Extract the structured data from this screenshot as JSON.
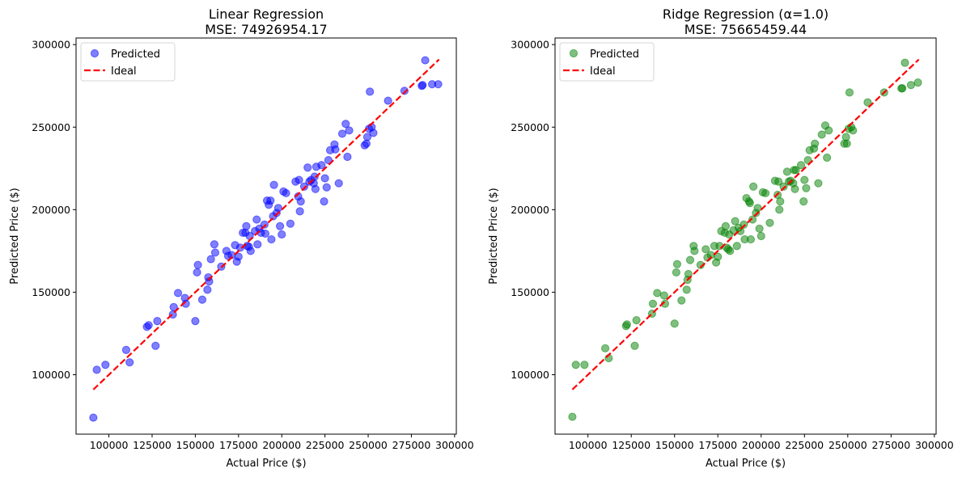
{
  "chart_data": [
    {
      "type": "scatter",
      "title_line1": "Linear Regression",
      "title_line2": "MSE: 74926954.17",
      "xlabel": "Actual Price ($)",
      "ylabel": "Predicted Price ($)",
      "xlim": [
        81000,
        301000
      ],
      "ylim": [
        64000,
        304000
      ],
      "xticks": [
        100000,
        125000,
        150000,
        175000,
        200000,
        225000,
        250000,
        275000,
        300000
      ],
      "yticks": [
        100000,
        150000,
        200000,
        250000,
        300000
      ],
      "xtick_labels": [
        "100000",
        "125000",
        "150000",
        "175000",
        "200000",
        "225000",
        "250000",
        "275000",
        "300000"
      ],
      "ytick_labels": [
        "100000",
        "150000",
        "200000",
        "250000",
        "300000"
      ],
      "legend": {
        "position": "upper-left",
        "entries": [
          "Predicted",
          "Ideal"
        ]
      },
      "grid": false,
      "point_color": "#0000ff",
      "ideal_color": "#ff0000",
      "ideal_line": {
        "x": [
          91000,
          291000
        ],
        "y": [
          91000,
          291000
        ]
      },
      "series": [
        {
          "name": "Predicted",
          "points": [
            [
              91000,
              74000
            ],
            [
              93000,
              103000
            ],
            [
              98000,
              106000
            ],
            [
              110000,
              115000
            ],
            [
              112000,
              107500
            ],
            [
              122000,
              129000
            ],
            [
              123000,
              130000
            ],
            [
              127000,
              117500
            ],
            [
              128000,
              132500
            ],
            [
              137000,
              136500
            ],
            [
              137500,
              141000
            ],
            [
              140000,
              149500
            ],
            [
              144000,
              146500
            ],
            [
              144500,
              143000
            ],
            [
              150000,
              132500
            ],
            [
              151000,
              162000
            ],
            [
              151500,
              166500
            ],
            [
              154000,
              145500
            ],
            [
              157000,
              151500
            ],
            [
              157500,
              159000
            ],
            [
              158000,
              156500
            ],
            [
              159000,
              170000
            ],
            [
              161000,
              179000
            ],
            [
              161500,
              174000
            ],
            [
              165000,
              165500
            ],
            [
              168000,
              175000
            ],
            [
              169000,
              172000
            ],
            [
              171000,
              172500
            ],
            [
              173000,
              178500
            ],
            [
              174000,
              168500
            ],
            [
              175000,
              171500
            ],
            [
              176000,
              177000
            ],
            [
              177500,
              186000
            ],
            [
              179000,
              186000
            ],
            [
              179500,
              190000
            ],
            [
              180000,
              178000
            ],
            [
              181000,
              177500
            ],
            [
              181500,
              184000
            ],
            [
              182000,
              175000
            ],
            [
              184500,
              187000
            ],
            [
              185500,
              194000
            ],
            [
              186000,
              179000
            ],
            [
              187000,
              188500
            ],
            [
              188000,
              186000
            ],
            [
              190000,
              191000
            ],
            [
              190500,
              185500
            ],
            [
              191500,
              205500
            ],
            [
              192500,
              203000
            ],
            [
              193500,
              205500
            ],
            [
              194000,
              182000
            ],
            [
              195000,
              196000
            ],
            [
              195500,
              215000
            ],
            [
              197000,
              198000
            ],
            [
              198000,
              201000
            ],
            [
              199000,
              190000
            ],
            [
              200000,
              185000
            ],
            [
              201000,
              211000
            ],
            [
              202500,
              210000
            ],
            [
              205000,
              191500
            ],
            [
              208000,
              217000
            ],
            [
              209500,
              208000
            ],
            [
              210000,
              218000
            ],
            [
              210500,
              199000
            ],
            [
              211000,
              205000
            ],
            [
              213000,
              214000
            ],
            [
              215000,
              225500
            ],
            [
              216000,
              217000
            ],
            [
              217000,
              218000
            ],
            [
              218500,
              216000
            ],
            [
              219500,
              212500
            ],
            [
              219000,
              220000
            ],
            [
              220000,
              226000
            ],
            [
              223000,
              227000
            ],
            [
              224500,
              205000
            ],
            [
              225000,
              219000
            ],
            [
              226000,
              213500
            ],
            [
              227000,
              230000
            ],
            [
              228000,
              236000
            ],
            [
              230500,
              239500
            ],
            [
              231000,
              236500
            ],
            [
              233000,
              216000
            ],
            [
              235000,
              246000
            ],
            [
              237000,
              252000
            ],
            [
              238000,
              232000
            ],
            [
              239000,
              248000
            ],
            [
              248000,
              239000
            ],
            [
              249000,
              240000
            ],
            [
              249500,
              244000
            ],
            [
              250500,
              249000
            ],
            [
              251000,
              271500
            ],
            [
              252000,
              250000
            ],
            [
              253000,
              246500
            ],
            [
              261500,
              266000
            ],
            [
              271000,
              272000
            ],
            [
              281000,
              275000
            ],
            [
              281500,
              275500
            ],
            [
              283000,
              290500
            ],
            [
              287000,
              276000
            ],
            [
              290500,
              276000
            ]
          ]
        },
        {
          "name": "Ideal",
          "style": "dashed"
        }
      ]
    },
    {
      "type": "scatter",
      "title_line1": "Ridge Regression (α=1.0)",
      "title_line2": "MSE: 75665459.44",
      "xlabel": "Actual Price ($)",
      "ylabel": "Predicted Price ($)",
      "xlim": [
        81000,
        301000
      ],
      "ylim": [
        64000,
        304000
      ],
      "xticks": [
        100000,
        125000,
        150000,
        175000,
        200000,
        225000,
        250000,
        275000,
        300000
      ],
      "yticks": [
        100000,
        150000,
        200000,
        250000,
        300000
      ],
      "xtick_labels": [
        "100000",
        "125000",
        "150000",
        "175000",
        "200000",
        "225000",
        "250000",
        "275000",
        "300000"
      ],
      "ytick_labels": [
        "100000",
        "150000",
        "200000",
        "250000",
        "300000"
      ],
      "legend": {
        "position": "upper-left",
        "entries": [
          "Predicted",
          "Ideal"
        ]
      },
      "grid": false,
      "point_color": "#008000",
      "ideal_color": "#ff0000",
      "ideal_line": {
        "x": [
          91000,
          291000
        ],
        "y": [
          91000,
          291000
        ]
      },
      "series": [
        {
          "name": "Predicted",
          "points": [
            [
              91000,
              74500
            ],
            [
              93000,
              106000
            ],
            [
              98000,
              106000
            ],
            [
              110000,
              116000
            ],
            [
              112000,
              110000
            ],
            [
              122000,
              129500
            ],
            [
              122500,
              130500
            ],
            [
              127000,
              117500
            ],
            [
              128000,
              133000
            ],
            [
              137000,
              137000
            ],
            [
              137500,
              143000
            ],
            [
              140000,
              149500
            ],
            [
              144000,
              148000
            ],
            [
              144500,
              143000
            ],
            [
              150000,
              131000
            ],
            [
              151000,
              162000
            ],
            [
              151500,
              167000
            ],
            [
              154000,
              145000
            ],
            [
              157000,
              151500
            ],
            [
              157500,
              157500
            ],
            [
              158000,
              161000
            ],
            [
              159000,
              169500
            ],
            [
              161000,
              178000
            ],
            [
              161500,
              175000
            ],
            [
              165000,
              166500
            ],
            [
              168000,
              176000
            ],
            [
              169000,
              171000
            ],
            [
              171000,
              172500
            ],
            [
              173000,
              178000
            ],
            [
              174000,
              168000
            ],
            [
              175000,
              171500
            ],
            [
              176000,
              178000
            ],
            [
              177000,
              187000
            ],
            [
              179000,
              186000
            ],
            [
              179500,
              190000
            ],
            [
              180000,
              177000
            ],
            [
              181000,
              176000
            ],
            [
              181500,
              185000
            ],
            [
              182000,
              175000
            ],
            [
              184000,
              187500
            ],
            [
              185000,
              193000
            ],
            [
              186000,
              178000
            ],
            [
              187000,
              189000
            ],
            [
              188000,
              187000
            ],
            [
              190000,
              191000
            ],
            [
              190500,
              182000
            ],
            [
              191500,
              207000
            ],
            [
              193000,
              205000
            ],
            [
              193500,
              204000
            ],
            [
              194000,
              182000
            ],
            [
              195000,
              194000
            ],
            [
              195500,
              214000
            ],
            [
              197000,
              198000
            ],
            [
              198000,
              201000
            ],
            [
              199000,
              188500
            ],
            [
              200000,
              184000
            ],
            [
              201000,
              210500
            ],
            [
              202500,
              210000
            ],
            [
              205000,
              192000
            ],
            [
              208000,
              217500
            ],
            [
              209500,
              209000
            ],
            [
              210000,
              217000
            ],
            [
              210500,
              200000
            ],
            [
              211000,
              205000
            ],
            [
              213000,
              214000
            ],
            [
              215000,
              223000
            ],
            [
              216000,
              217000
            ],
            [
              217000,
              217500
            ],
            [
              218500,
              216000
            ],
            [
              219500,
              212500
            ],
            [
              219000,
              224000
            ],
            [
              220000,
              224000
            ],
            [
              223000,
              227000
            ],
            [
              224500,
              205000
            ],
            [
              225000,
              218000
            ],
            [
              226000,
              213000
            ],
            [
              227000,
              230000
            ],
            [
              228000,
              236000
            ],
            [
              230500,
              237000
            ],
            [
              231000,
              240000
            ],
            [
              233000,
              216000
            ],
            [
              235000,
              245500
            ],
            [
              237000,
              251000
            ],
            [
              238000,
              231500
            ],
            [
              239000,
              248000
            ],
            [
              248000,
              240000
            ],
            [
              249000,
              244000
            ],
            [
              249500,
              240000
            ],
            [
              250500,
              249000
            ],
            [
              251000,
              271000
            ],
            [
              252000,
              250000
            ],
            [
              253000,
              248000
            ],
            [
              261500,
              265000
            ],
            [
              271000,
              271000
            ],
            [
              281000,
              273500
            ],
            [
              281500,
              273500
            ],
            [
              283000,
              289000
            ],
            [
              286500,
              275500
            ],
            [
              290500,
              277000
            ]
          ]
        },
        {
          "name": "Ideal",
          "style": "dashed"
        }
      ]
    }
  ]
}
